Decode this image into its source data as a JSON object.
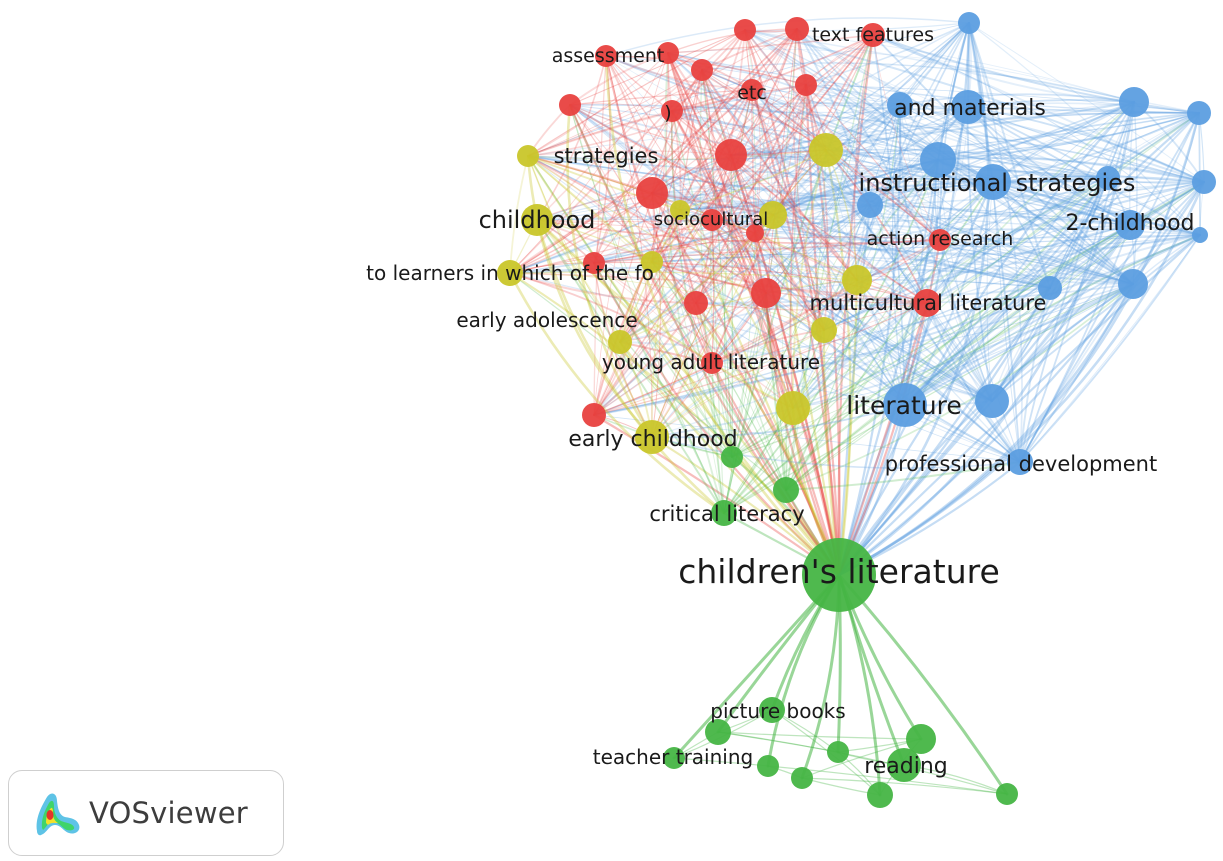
{
  "colors": {
    "cluster_1": "#e8413f",
    "cluster_2": "#46b544",
    "cluster_3": "#5c9ee0",
    "cluster_4": "#c9c62a",
    "background": "#ffffff"
  },
  "brand": {
    "name": "VOSviewer",
    "icon": "vosviewer-logo-icon"
  },
  "network": {
    "labels": {
      "childrens_literature": "children's literature",
      "literature": "literature",
      "instructional_strategies": "instructional strategies",
      "and_materials": "and materials",
      "two_childhood": "2-childhood",
      "professional_development": "professional development",
      "action_research": "action research",
      "multicultural_literature": "multicultural literature",
      "text_features": "text features",
      "assessment": "assessment",
      "etc": "etc",
      "paren": ")",
      "strategies": "strategies",
      "childhood": "childhood",
      "sociocultural": "sociocultural",
      "to_learners": "to learners in which of the fo",
      "early_adolescence": "early adolescence",
      "young_adult_literature": "young adult literature",
      "early_childhood": "early childhood",
      "critical_literacy": "critical literacy",
      "picture_books": "picture books",
      "teacher_training": "teacher training",
      "reading": "reading"
    }
  }
}
